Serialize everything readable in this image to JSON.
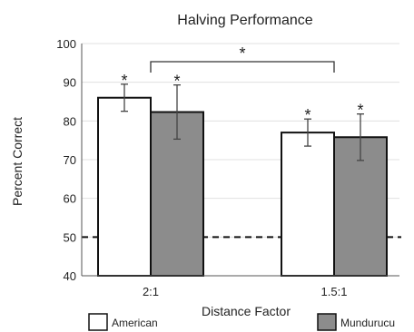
{
  "chart_data": {
    "type": "bar",
    "title": "Halving Performance",
    "xlabel": "Distance Factor",
    "ylabel": "Percent Correct",
    "categories": [
      "2:1",
      "1.5:1"
    ],
    "ylim": [
      40,
      100
    ],
    "yticks": [
      40,
      50,
      60,
      70,
      80,
      90,
      100
    ],
    "series": [
      {
        "name": "American",
        "values": [
          86,
          77
        ],
        "error": [
          3.5,
          3.5
        ],
        "color": "#ffffff"
      },
      {
        "name": "Mundurucu",
        "values": [
          82.3,
          75.8
        ],
        "error": [
          7,
          6
        ],
        "color": "#8c8c8c"
      }
    ],
    "significance_marks": [
      {
        "series": 0,
        "category": 0,
        "label": "*"
      },
      {
        "series": 1,
        "category": 0,
        "label": "*"
      },
      {
        "series": 0,
        "category": 1,
        "label": "*"
      },
      {
        "series": 1,
        "category": 1,
        "label": "*"
      }
    ],
    "comparison_bracket": {
      "between": [
        "2:1",
        "1.5:1"
      ],
      "label": "*"
    },
    "reference_line": {
      "y": 50,
      "style": "dashed"
    },
    "grid": "horizontal",
    "legend": "bottom"
  }
}
